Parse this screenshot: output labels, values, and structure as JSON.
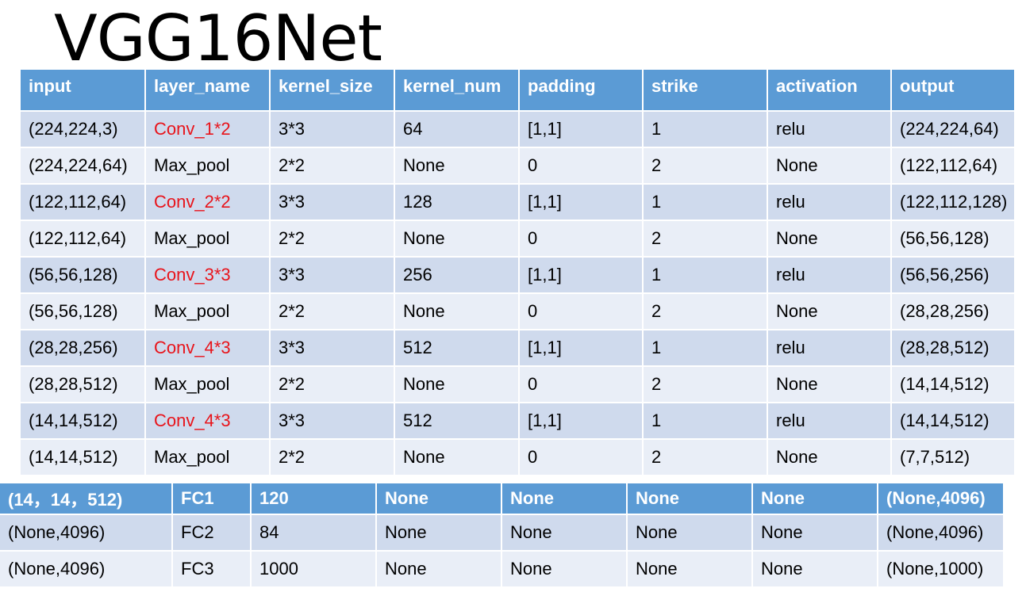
{
  "title": "VGG16Net",
  "table1": {
    "headers": [
      "input",
      "layer_name",
      "kernel_size",
      "kernel_num",
      "padding",
      "strike",
      "activation",
      "output"
    ],
    "rows": [
      [
        "(224,224,3)",
        "Conv_1*2",
        "3*3",
        "64",
        "[1,1]",
        "1",
        "relu",
        "(224,224,64)"
      ],
      [
        "(224,224,64)",
        "Max_pool",
        "2*2",
        "None",
        "0",
        "2",
        "None",
        "(122,112,64)"
      ],
      [
        "(122,112,64)",
        "Conv_2*2",
        "3*3",
        "128",
        "[1,1]",
        "1",
        "relu",
        "(122,112,128)"
      ],
      [
        "(122,112,64)",
        "Max_pool",
        "2*2",
        "None",
        "0",
        "2",
        "None",
        "(56,56,128)"
      ],
      [
        "(56,56,128)",
        "Conv_3*3",
        "3*3",
        "256",
        "[1,1]",
        "1",
        "relu",
        "(56,56,256)"
      ],
      [
        "(56,56,128)",
        "Max_pool",
        "2*2",
        "None",
        "0",
        "2",
        "None",
        "(28,28,256)"
      ],
      [
        "(28,28,256)",
        "Conv_4*3",
        "3*3",
        "512",
        "[1,1]",
        "1",
        "relu",
        "(28,28,512)"
      ],
      [
        "(28,28,512)",
        "Max_pool",
        "2*2",
        "None",
        "0",
        "2",
        "None",
        "(14,14,512)"
      ],
      [
        "(14,14,512)",
        "Conv_4*3",
        "3*3",
        "512",
        "[1,1]",
        "1",
        "relu",
        "(14,14,512)"
      ],
      [
        "(14,14,512)",
        "Max_pool",
        "2*2",
        "None",
        "0",
        "2",
        "None",
        "(7,7,512)"
      ]
    ]
  },
  "table2": {
    "headers": [
      "(14，14，512)",
      "FC1",
      "120",
      "None",
      "None",
      "None",
      "None",
      "(None,4096)"
    ],
    "rows": [
      [
        "(None,4096)",
        "FC2",
        "84",
        "None",
        "None",
        "None",
        "None",
        "(None,4096)"
      ],
      [
        "(None,4096)",
        "FC3",
        "1000",
        "None",
        "None",
        "None",
        "None",
        "(None,1000)"
      ]
    ]
  },
  "colors": {
    "header_bg": "#5b9bd5",
    "row_dark": "#cfdaed",
    "row_light": "#e9eef7",
    "conv_text": "#e8141b"
  }
}
